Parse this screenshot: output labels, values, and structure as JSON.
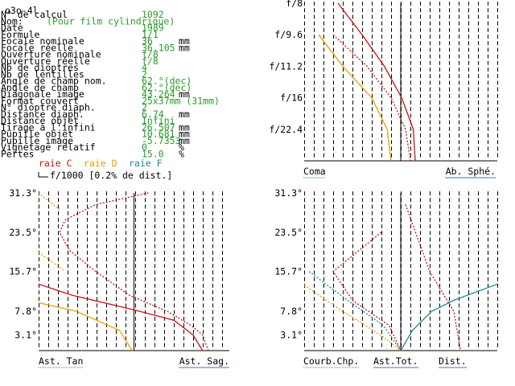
{
  "window_title": "o3o-4l",
  "params": [
    {
      "label": "N° de calcul",
      "value": "1092",
      "unit": ""
    },
    {
      "label": "Nom:",
      "value": "(Pour film cylindrique)",
      "unit": ""
    },
    {
      "label": "Date",
      "value": "1989",
      "unit": ""
    },
    {
      "label": "Formule",
      "value": "1/1",
      "unit": ""
    },
    {
      "label": "Focale nominale",
      "value": "36",
      "unit": "mm"
    },
    {
      "label": "Focale réelle",
      "value": "36.105",
      "unit": "mm"
    },
    {
      "label": "Ouverture nominale",
      "value": "f/8",
      "unit": ""
    },
    {
      "label": "Ouverture réelle",
      "value": "f/8",
      "unit": ""
    },
    {
      "label": "Nb de dioptres",
      "value": "4",
      "unit": ""
    },
    {
      "label": "Nb de lentilles",
      "value": "2",
      "unit": ""
    },
    {
      "label": "Angle de champ nom.",
      "value": "62.°(dec)",
      "unit": ""
    },
    {
      "label": "Angle de champ",
      "value": "62.°(dec)",
      "unit": ""
    },
    {
      "label": "Diagonale image",
      "value": "43.264",
      "unit": "mm"
    },
    {
      "label": "Format couvert",
      "value": "25x37mm (31mm)",
      "unit": ""
    },
    {
      "label": "N° dioptre diaph.",
      "value": "2",
      "unit": ""
    },
    {
      "label": "Distance diaph.",
      "value": "6.74",
      "unit": "mm"
    },
    {
      "label": "Distance objet",
      "value": "Infini",
      "unit": ""
    },
    {
      "label": "Tirage à l'infini",
      "value": "26.507",
      "unit": "mm"
    },
    {
      "label": "Pupille objet",
      "value": "10.681",
      "unit": "mm"
    },
    {
      "label": "Pupille image",
      "value": "-5.7353",
      "unit": "mm"
    },
    {
      "label": "Vignetage relatif",
      "value": "0",
      "unit": "%"
    },
    {
      "label": "Pertes",
      "value": "15.0",
      "unit": "%"
    }
  ],
  "legend": {
    "raie_c": "raie C",
    "raie_d": "raie D",
    "raie_f": "raie F",
    "scale_note": "f/1000 [0.2% de dist.]"
  },
  "colors": {
    "raie_c": "#cc1111",
    "raie_d": "#e8a000",
    "raie_f": "#1a8a9a",
    "value_green": "#2a9a2a",
    "underline_blue": "#3a7ac8"
  },
  "chart_data": [
    {
      "type": "line",
      "id": "coma_spherical",
      "y_tick_labels": [
        "f/8",
        "f/9.6",
        "f/11.2",
        "f/16",
        "f/22.4"
      ],
      "y_values": [
        1.0,
        0.8,
        0.6,
        0.4,
        0.2
      ],
      "x_range": [
        -1,
        1
      ],
      "y_range": [
        0,
        1
      ],
      "bottom_labels": [
        "Coma",
        "Ab. Sphé."
      ],
      "series": [
        {
          "name": "raie C",
          "style": "solid",
          "y": [
            1.0,
            0.8,
            0.6,
            0.4,
            0.2,
            0.0
          ],
          "x": [
            -0.65,
            -0.4,
            -0.17,
            0.01,
            0.13,
            0.15
          ]
        },
        {
          "name": "raie C",
          "style": "dashed",
          "y": [
            0.8,
            0.6,
            0.4,
            0.2,
            0.0
          ],
          "x": [
            -0.7,
            -0.35,
            -0.1,
            0.05,
            0.1
          ]
        },
        {
          "name": "raie D",
          "style": "solid",
          "y": [
            0.8,
            0.6,
            0.4,
            0.2,
            0.0
          ],
          "x": [
            -0.85,
            -0.6,
            -0.3,
            -0.14,
            -0.1
          ]
        }
      ]
    },
    {
      "type": "line",
      "id": "astigmatism",
      "y_tick_labels": [
        "31.3°",
        "23.5°",
        "15.7°",
        "7.8°",
        "3.1°"
      ],
      "y_values": [
        31.3,
        23.5,
        15.7,
        7.8,
        3.1
      ],
      "x_range": [
        -1,
        1
      ],
      "y_range": [
        0,
        31.3
      ],
      "bottom_labels": [
        "Ast. Tan",
        "Ast. Sag."
      ],
      "series": [
        {
          "name": "raie D",
          "style": "dashed",
          "y": [
            31.3,
            28.0
          ],
          "x": [
            -1.0,
            -0.78
          ]
        },
        {
          "name": "raie D",
          "style": "dashed",
          "y": [
            19.5,
            16.0
          ],
          "x": [
            -1.0,
            -0.74
          ]
        },
        {
          "name": "raie D",
          "style": "solid",
          "y": [
            9.5,
            7.8,
            4.0,
            0.0
          ],
          "x": [
            -1.0,
            -0.6,
            -0.15,
            -0.02
          ]
        },
        {
          "name": "raie C",
          "style": "dashed",
          "y": [
            31.3,
            29.0,
            26.0,
            23.5,
            20.0,
            15.7,
            11.0,
            7.8,
            5.0,
            3.1,
            0.0
          ],
          "x": [
            0.15,
            -0.4,
            -0.72,
            -0.78,
            -0.68,
            -0.4,
            -0.05,
            0.35,
            0.6,
            0.72,
            0.78
          ]
        },
        {
          "name": "raie C",
          "style": "solid",
          "y": [
            13.2,
            11.0,
            8.0,
            6.0,
            3.1,
            0.0
          ],
          "x": [
            -1.0,
            -0.65,
            0.02,
            0.42,
            0.62,
            0.72
          ]
        }
      ]
    },
    {
      "type": "line",
      "id": "field_curvature_distortion",
      "y_tick_labels": [
        "31.3°",
        "23.5°",
        "15.7°",
        "7.8°",
        "3.1°"
      ],
      "y_values": [
        31.3,
        23.5,
        15.7,
        7.8,
        3.1
      ],
      "x_range": [
        -1,
        1
      ],
      "y_range": [
        0,
        31.3
      ],
      "bottom_labels": [
        "Courb.Chp.",
        "Ast.Tot.",
        "Dist."
      ],
      "series": [
        {
          "name": "raie F",
          "style": "solid",
          "y": [
            13.2,
            10.0,
            7.8,
            4.0,
            0.0
          ],
          "x": [
            1.0,
            0.55,
            0.32,
            0.12,
            0.0
          ]
        },
        {
          "name": "raie F",
          "style": "dashed",
          "y": [
            15.7,
            10.0,
            5.0,
            0.0
          ],
          "x": [
            -0.95,
            -0.55,
            -0.18,
            0.0
          ]
        },
        {
          "name": "raie D",
          "style": "dashed",
          "y": [
            13.0,
            7.8,
            3.0,
            0.0
          ],
          "x": [
            -1.0,
            -0.6,
            -0.2,
            0.0
          ]
        },
        {
          "name": "raie C",
          "style": "dashed",
          "y": [
            23.5,
            15.7,
            10.0,
            5.0,
            0.0
          ],
          "x": [
            -0.2,
            -0.7,
            -0.5,
            -0.12,
            0.0
          ]
        },
        {
          "name": "raie C",
          "style": "dashed",
          "y": [
            29.0,
            15.7,
            7.8,
            0.0
          ],
          "x": [
            0.05,
            0.3,
            0.55,
            0.62
          ]
        }
      ]
    }
  ]
}
